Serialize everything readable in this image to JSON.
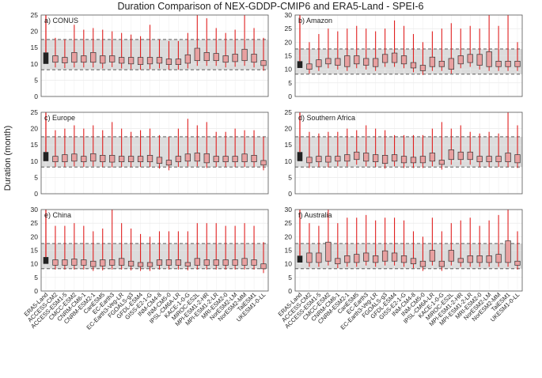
{
  "figure": {
    "title": "Duration Comparison of NEX-GDDP-CMIP6 and ERA5-Land - SPEI-6",
    "ylabel": "Duration (month)"
  },
  "colors": {
    "era5": "#222222",
    "model_fill": "#e8a0a0",
    "whisker": "#e02020",
    "shade": "#dcdcdc",
    "dashed": "#444444"
  },
  "chart_data": {
    "type": "box",
    "categories": [
      "ERA5-Land",
      "ACCESS-CM2",
      "ACCESS-ESM1-5",
      "CMCC-ESM2",
      "CNRM-CM6-1",
      "CNRM-ESM2-1",
      "CanESM5",
      "EC-Earth3",
      "EC-Earth3-Veg-LR",
      "FGOALS-g3",
      "GFDL-ESM4",
      "GISS-E2-1-G",
      "INM-CM4-8",
      "INM-CM5-0",
      "IPSL-CM6A-LR",
      "KACE-1-0-G",
      "MIROC-ES2L",
      "MPI-ESM1-2-HR",
      "MPI-ESM1-2-LR",
      "MRI-ESM2-0",
      "NorESM2-LM",
      "NorESM2-MM",
      "TaiESM1",
      "UKESM1-0-LL"
    ],
    "panels": [
      {
        "label": "a) CONUS",
        "ylim": [
          0,
          25
        ],
        "yticks": [
          0,
          5,
          10,
          15,
          20,
          25
        ],
        "era5": {
          "q1": 10,
          "q3": 13.5,
          "whisker_high": 25,
          "band_low": 8.2,
          "band_high": 17.5
        },
        "q1": [
          10.5,
          10.3,
          10.5,
          10.5,
          10.5,
          10.2,
          10.6,
          10.2,
          10,
          9.8,
          10,
          10.2,
          9.8,
          9.8,
          10.2,
          11,
          11,
          11,
          10.5,
          10.7,
          11,
          10.5,
          9.5
        ],
        "q3": [
          12.5,
          12,
          13.5,
          12.5,
          13.5,
          12.5,
          12.5,
          12,
          12,
          12,
          12,
          12,
          11.5,
          11.5,
          12.8,
          14.8,
          13.5,
          13.2,
          12.5,
          13,
          14.5,
          13,
          11
        ],
        "max": [
          18,
          17.5,
          22,
          20.5,
          21,
          20.5,
          20,
          19.5,
          19,
          18.5,
          22,
          17.5,
          17,
          17,
          19.5,
          25,
          24,
          21,
          19.5,
          20.5,
          25,
          21,
          18
        ]
      },
      {
        "label": "b) Amazon",
        "ylim": [
          0,
          30
        ],
        "yticks": [
          0,
          5,
          10,
          15,
          20,
          25,
          30
        ],
        "era5": {
          "q1": 10.5,
          "q3": 13,
          "whisker_high": 30,
          "band_low": 8.2,
          "band_high": 17.5
        },
        "q1": [
          10,
          11,
          12,
          11.5,
          11,
          12,
          11.5,
          11,
          12.5,
          12.5,
          12,
          10.5,
          9.5,
          11,
          11,
          10,
          12,
          12.5,
          11.5,
          11,
          11,
          11,
          11
        ],
        "q3": [
          12,
          13.5,
          14,
          14,
          15,
          15,
          14,
          14,
          15.5,
          16,
          15,
          12.5,
          11.5,
          14.5,
          13,
          14,
          15,
          15.5,
          15.5,
          16.5,
          13,
          13,
          13
        ],
        "max": [
          20,
          23,
          25,
          24,
          25,
          26,
          25,
          24,
          25,
          28,
          26,
          23,
          20,
          24,
          25,
          27,
          25,
          26,
          25,
          30,
          26,
          30,
          20
        ]
      },
      {
        "label": "c) Europe",
        "ylim": [
          0,
          25
        ],
        "yticks": [
          0,
          5,
          10,
          15,
          20,
          25
        ],
        "era5": {
          "q1": 10,
          "q3": 12.8,
          "whisker_high": 25,
          "band_low": 8.2,
          "band_high": 17.5
        },
        "q1": [
          9.8,
          9.8,
          10,
          9.8,
          10,
          9.8,
          9.7,
          9.8,
          9.8,
          9.8,
          9.8,
          9.3,
          8.8,
          9.8,
          10,
          10,
          9.5,
          9.8,
          9.8,
          9.8,
          9.8,
          9.8,
          8.8
        ],
        "q3": [
          11.5,
          12,
          12.2,
          11.5,
          12.3,
          11.8,
          11.8,
          11.5,
          11.5,
          11.5,
          11.8,
          11.2,
          10.3,
          11.5,
          12.2,
          12.5,
          12.3,
          11.5,
          11.5,
          11.5,
          12.2,
          11.8,
          10.2
        ],
        "max": [
          19.5,
          20,
          21,
          20,
          21,
          19.5,
          22,
          20,
          19,
          19.5,
          20,
          18,
          17.5,
          20,
          23,
          21,
          22,
          19,
          19,
          20,
          19.5,
          19.5,
          17.5
        ]
      },
      {
        "label": "d) Southern Africa",
        "ylim": [
          0,
          25
        ],
        "yticks": [
          0,
          5,
          10,
          15,
          20,
          25
        ],
        "era5": {
          "q1": 10,
          "q3": 12.8,
          "whisker_high": 25,
          "band_low": 8.2,
          "band_high": 17.5
        },
        "q1": [
          9.5,
          9.8,
          9.7,
          10,
          10,
          10.5,
          10,
          9.8,
          9.3,
          10,
          9.5,
          9.5,
          9.5,
          10,
          9,
          10.5,
          10.5,
          10.5,
          9.8,
          9.8,
          9.8,
          9.8,
          9.5
        ],
        "q3": [
          11.2,
          11.5,
          11.5,
          11.5,
          12,
          12.8,
          12.5,
          12,
          11.8,
          12,
          11.5,
          11.2,
          11.5,
          12.5,
          10.3,
          13.5,
          12.8,
          12.8,
          11.5,
          11.5,
          11.5,
          12.5,
          12
        ],
        "max": [
          19,
          18.5,
          19,
          19,
          20,
          19.5,
          21,
          20,
          19.5,
          18,
          18,
          18,
          18,
          20,
          22,
          20,
          21,
          19,
          18.5,
          19,
          18.5,
          25,
          21
        ]
      },
      {
        "label": "e) China",
        "ylim": [
          0,
          30
        ],
        "yticks": [
          0,
          5,
          10,
          15,
          20,
          25,
          30
        ],
        "era5": {
          "q1": 10,
          "q3": 12.5,
          "whisker_high": 30,
          "band_low": 8.2,
          "band_high": 17.5
        },
        "q1": [
          9.5,
          9.5,
          9.5,
          9.5,
          9,
          9.2,
          9.5,
          9.5,
          9.2,
          9,
          9,
          9.5,
          9.5,
          9.5,
          9.2,
          9.5,
          9.5,
          9.5,
          9.5,
          9.5,
          9.5,
          9.5,
          8.2
        ],
        "q3": [
          11.5,
          11.5,
          11.8,
          11.5,
          11,
          11.5,
          11.5,
          12,
          11,
          10.5,
          10.5,
          11.5,
          11.5,
          11.5,
          10.5,
          12,
          11.5,
          11.5,
          11.5,
          11.5,
          12,
          11.5,
          10
        ],
        "max": [
          24,
          24,
          25,
          24,
          22,
          23,
          30,
          25,
          23,
          21,
          20,
          22,
          22,
          22,
          22,
          25,
          25,
          25,
          24,
          24,
          25,
          24,
          18
        ]
      },
      {
        "label": "f) Australia",
        "ylim": [
          0,
          30
        ],
        "yticks": [
          0,
          5,
          10,
          15,
          20,
          25,
          30
        ],
        "era5": {
          "q1": 10.5,
          "q3": 13,
          "whisker_high": 30,
          "band_low": 8.2,
          "band_high": 17.5
        },
        "q1": [
          10.5,
          10.5,
          11,
          10,
          10.5,
          10.5,
          11,
          10.5,
          11,
          11,
          10.5,
          10,
          9,
          11,
          9,
          11,
          10.5,
          10.5,
          10.5,
          10.5,
          10.5,
          10.5,
          9.5
        ],
        "q3": [
          14,
          14,
          18,
          12,
          13,
          13.5,
          14,
          13,
          14.8,
          14,
          13,
          12,
          11,
          15,
          11,
          15,
          12,
          13,
          13,
          13,
          13.5,
          18.5,
          11
        ],
        "max": [
          25,
          24,
          30,
          25,
          27,
          27,
          28,
          26,
          27,
          27,
          26,
          22,
          20,
          27,
          22,
          25,
          26,
          27,
          24,
          26,
          28,
          30,
          22
        ]
      }
    ]
  }
}
